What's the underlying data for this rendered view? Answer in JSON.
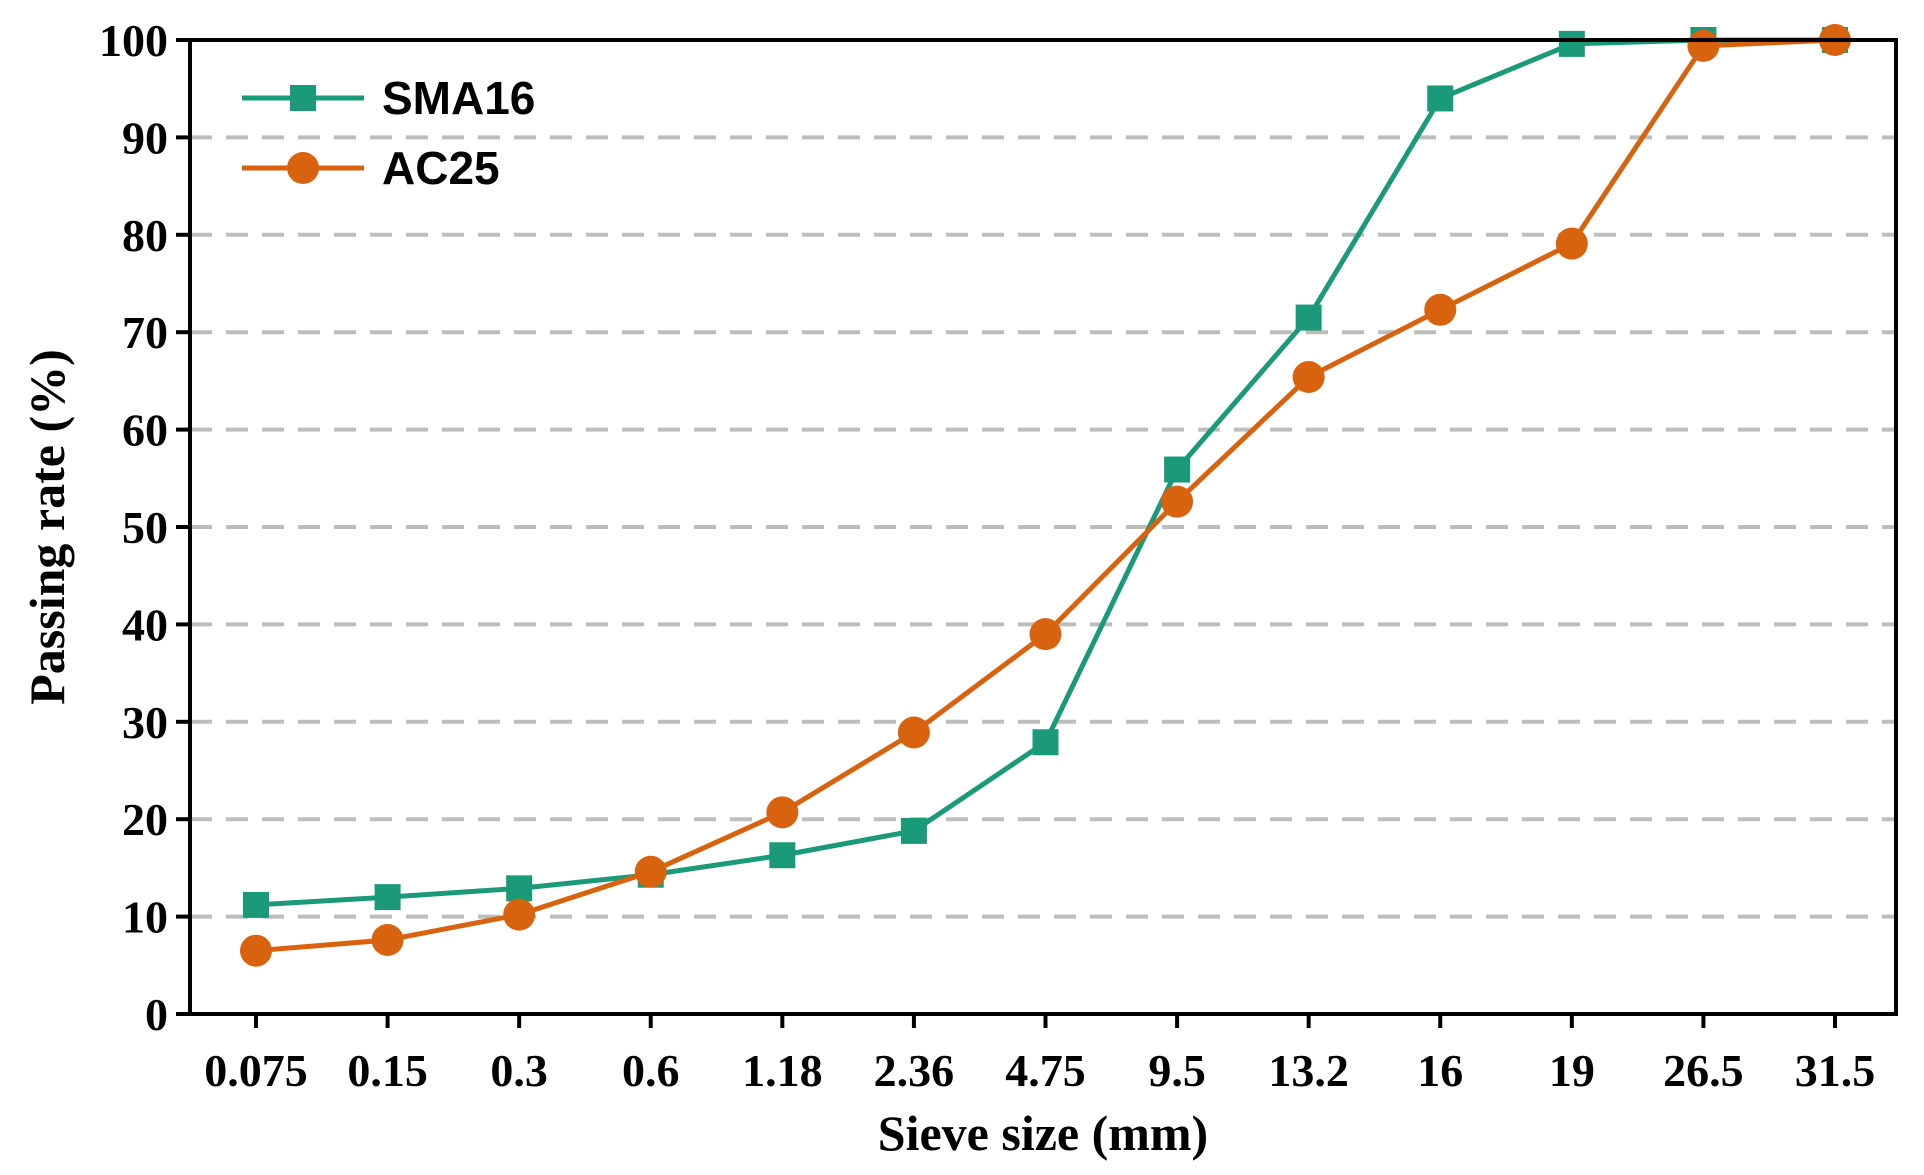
{
  "chart_data": {
    "type": "line",
    "title": "",
    "xlabel": "Sieve size (mm)",
    "ylabel": "Passing rate (%)",
    "categories": [
      "0.075",
      "0.15",
      "0.3",
      "0.6",
      "1.18",
      "2.36",
      "4.75",
      "9.5",
      "13.2",
      "16",
      "19",
      "26.5",
      "31.5"
    ],
    "ylim": [
      0,
      100
    ],
    "yticks": [
      "0",
      "10",
      "20",
      "30",
      "40",
      "50",
      "60",
      "70",
      "80",
      "90",
      "100"
    ],
    "grid": "horizontal-dashed",
    "legend_position": "top-left",
    "series": [
      {
        "name": "SMA16",
        "color": "#1a9a78",
        "marker": "square",
        "values": [
          11.2,
          12.0,
          12.9,
          14.3,
          16.3,
          18.8,
          27.9,
          55.9,
          71.5,
          94.0,
          99.6,
          100.0,
          100.0
        ]
      },
      {
        "name": "AC25",
        "color": "#d9620f",
        "marker": "circle",
        "values": [
          6.5,
          7.6,
          10.2,
          14.6,
          20.7,
          28.9,
          39.0,
          52.6,
          65.4,
          72.3,
          79.1,
          99.4,
          100.0
        ]
      }
    ]
  }
}
